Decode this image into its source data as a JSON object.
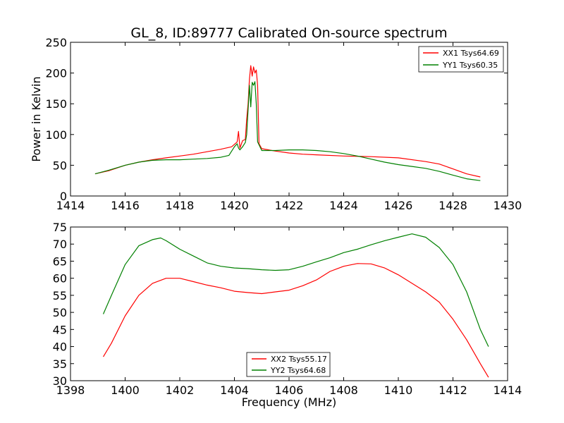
{
  "chart_data": [
    {
      "type": "line",
      "title": "GL_8, ID:89777 Calibrated On-source spectrum",
      "xlabel": "",
      "ylabel": "Power in Kelvin",
      "xlim": [
        1414,
        1430
      ],
      "ylim": [
        0,
        250
      ],
      "xticks": [
        "1414",
        "1416",
        "1418",
        "1420",
        "1422",
        "1424",
        "1426",
        "1428",
        "1430"
      ],
      "yticks": [
        "0",
        "50",
        "100",
        "150",
        "200",
        "250"
      ],
      "legend_position": "top-right",
      "grid": false,
      "series": [
        {
          "name": "XX1 Tsys64.69",
          "color": "#ff0000",
          "points": [
            [
              1414.9,
              36
            ],
            [
              1415.4,
              41
            ],
            [
              1416,
              50
            ],
            [
              1416.5,
              55
            ],
            [
              1417,
              59
            ],
            [
              1417.5,
              62
            ],
            [
              1418,
              65
            ],
            [
              1418.5,
              68
            ],
            [
              1419,
              72
            ],
            [
              1419.5,
              76
            ],
            [
              1419.9,
              80
            ],
            [
              1420.1,
              88
            ],
            [
              1420.15,
              105
            ],
            [
              1420.2,
              78
            ],
            [
              1420.3,
              90
            ],
            [
              1420.4,
              92
            ],
            [
              1420.45,
              125
            ],
            [
              1420.5,
              150
            ],
            [
              1420.55,
              190
            ],
            [
              1420.6,
              212
            ],
            [
              1420.65,
              195
            ],
            [
              1420.7,
              210
            ],
            [
              1420.75,
              200
            ],
            [
              1420.8,
              205
            ],
            [
              1420.85,
              180
            ],
            [
              1420.9,
              85
            ],
            [
              1421,
              77
            ],
            [
              1421.5,
              73
            ],
            [
              1422,
              70
            ],
            [
              1422.5,
              68
            ],
            [
              1423,
              67
            ],
            [
              1424,
              65
            ],
            [
              1425,
              64
            ],
            [
              1426,
              62
            ],
            [
              1427,
              56
            ],
            [
              1427.5,
              52
            ],
            [
              1428,
              44
            ],
            [
              1428.5,
              36
            ],
            [
              1429,
              31
            ]
          ]
        },
        {
          "name": "YY1 Tsys60.35",
          "color": "#008000",
          "points": [
            [
              1414.9,
              36
            ],
            [
              1415.4,
              42
            ],
            [
              1416,
              50
            ],
            [
              1416.5,
              55
            ],
            [
              1417,
              58
            ],
            [
              1417.5,
              59
            ],
            [
              1418,
              59
            ],
            [
              1418.5,
              60
            ],
            [
              1419,
              61
            ],
            [
              1419.5,
              63
            ],
            [
              1419.8,
              66
            ],
            [
              1420,
              80
            ],
            [
              1420.1,
              85
            ],
            [
              1420.15,
              78
            ],
            [
              1420.2,
              75
            ],
            [
              1420.3,
              80
            ],
            [
              1420.4,
              87
            ],
            [
              1420.45,
              100
            ],
            [
              1420.5,
              140
            ],
            [
              1420.55,
              180
            ],
            [
              1420.6,
              145
            ],
            [
              1420.65,
              185
            ],
            [
              1420.7,
              180
            ],
            [
              1420.75,
              186
            ],
            [
              1420.8,
              150
            ],
            [
              1420.85,
              88
            ],
            [
              1421,
              74
            ],
            [
              1421.5,
              74
            ],
            [
              1422,
              75
            ],
            [
              1422.5,
              75
            ],
            [
              1423,
              74
            ],
            [
              1423.5,
              72
            ],
            [
              1424,
              69
            ],
            [
              1424.5,
              65
            ],
            [
              1425,
              60
            ],
            [
              1425.5,
              55
            ],
            [
              1426,
              51
            ],
            [
              1426.5,
              48
            ],
            [
              1427,
              45
            ],
            [
              1427.5,
              40
            ],
            [
              1428,
              34
            ],
            [
              1428.5,
              28
            ],
            [
              1429,
              25
            ]
          ]
        }
      ]
    },
    {
      "type": "line",
      "title": "",
      "xlabel": "Frequency (MHz)",
      "ylabel": "",
      "xlim": [
        1398,
        1414
      ],
      "ylim": [
        30,
        75
      ],
      "xticks": [
        "1398",
        "1400",
        "1402",
        "1404",
        "1406",
        "1408",
        "1410",
        "1412",
        "1414"
      ],
      "yticks": [
        "30",
        "35",
        "40",
        "45",
        "50",
        "55",
        "60",
        "65",
        "70",
        "75"
      ],
      "legend_position": "bottom-center",
      "grid": false,
      "series": [
        {
          "name": "XX2 Tsys55.17",
          "color": "#ff0000",
          "points": [
            [
              1399.2,
              37
            ],
            [
              1399.5,
              41
            ],
            [
              1400,
              49
            ],
            [
              1400.5,
              55
            ],
            [
              1401,
              58.5
            ],
            [
              1401.5,
              60
            ],
            [
              1402,
              60
            ],
            [
              1402.5,
              59
            ],
            [
              1403,
              58
            ],
            [
              1403.5,
              57.2
            ],
            [
              1404,
              56.2
            ],
            [
              1404.5,
              55.8
            ],
            [
              1405,
              55.5
            ],
            [
              1405.5,
              56
            ],
            [
              1406,
              56.5
            ],
            [
              1406.5,
              57.8
            ],
            [
              1407,
              59.5
            ],
            [
              1407.5,
              62
            ],
            [
              1408,
              63.5
            ],
            [
              1408.5,
              64.3
            ],
            [
              1409,
              64.2
            ],
            [
              1409.5,
              63
            ],
            [
              1410,
              61
            ],
            [
              1410.5,
              58.5
            ],
            [
              1411,
              56
            ],
            [
              1411.5,
              53
            ],
            [
              1412,
              48
            ],
            [
              1412.5,
              42
            ],
            [
              1413,
              35
            ],
            [
              1413.3,
              31
            ]
          ]
        },
        {
          "name": "YY2 Tsys64.68",
          "color": "#008000",
          "points": [
            [
              1399.2,
              49.5
            ],
            [
              1399.5,
              55
            ],
            [
              1400,
              64
            ],
            [
              1400.5,
              69.5
            ],
            [
              1401,
              71.3
            ],
            [
              1401.3,
              71.8
            ],
            [
              1401.5,
              71
            ],
            [
              1402,
              68.5
            ],
            [
              1402.5,
              66.5
            ],
            [
              1403,
              64.5
            ],
            [
              1403.5,
              63.5
            ],
            [
              1404,
              63
            ],
            [
              1404.5,
              62.8
            ],
            [
              1405,
              62.5
            ],
            [
              1405.5,
              62.3
            ],
            [
              1406,
              62.5
            ],
            [
              1406.5,
              63.5
            ],
            [
              1407,
              64.8
            ],
            [
              1407.5,
              66
            ],
            [
              1408,
              67.5
            ],
            [
              1408.5,
              68.5
            ],
            [
              1409,
              69.8
            ],
            [
              1409.5,
              71
            ],
            [
              1410,
              72
            ],
            [
              1410.5,
              73
            ],
            [
              1411,
              72
            ],
            [
              1411.5,
              69
            ],
            [
              1412,
              64
            ],
            [
              1412.5,
              56
            ],
            [
              1413,
              45
            ],
            [
              1413.3,
              40
            ]
          ]
        }
      ]
    }
  ]
}
